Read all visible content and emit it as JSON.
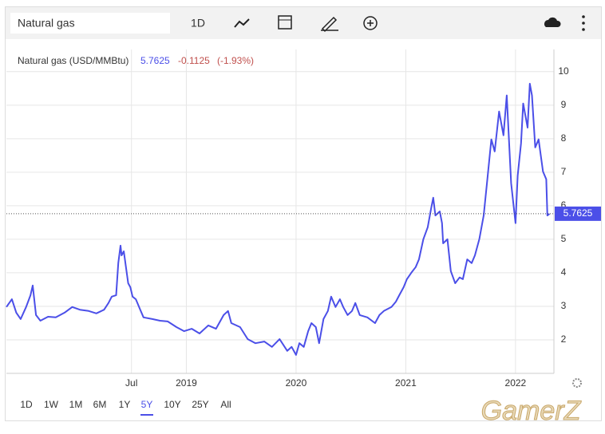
{
  "toolbar": {
    "search": "Natural gas",
    "interval": "1D"
  },
  "chart_data": {
    "type": "line",
    "title": "Natural gas (USD/MMBtu)",
    "last_price": 5.7625,
    "change": -0.1125,
    "change_pct": "(-1.93%)",
    "color": "#4b4fe8",
    "x": [
      2017.36,
      2017.41,
      2017.45,
      2017.49,
      2017.54,
      2017.58,
      2017.6,
      2017.63,
      2017.67,
      2017.74,
      2017.81,
      2017.89,
      2017.96,
      2018.03,
      2018.11,
      2018.18,
      2018.25,
      2018.29,
      2018.32,
      2018.36,
      2018.38,
      2018.4,
      2018.41,
      2018.43,
      2018.45,
      2018.47,
      2018.49,
      2018.51,
      2018.54,
      2018.58,
      2018.61,
      2018.69,
      2018.76,
      2018.83,
      2018.91,
      2018.98,
      2019.05,
      2019.12,
      2019.2,
      2019.27,
      2019.34,
      2019.38,
      2019.41,
      2019.49,
      2019.56,
      2019.63,
      2019.71,
      2019.78,
      2019.85,
      2019.92,
      2019.96,
      2020.0,
      2020.03,
      2020.07,
      2020.11,
      2020.14,
      2020.18,
      2020.21,
      2020.25,
      2020.29,
      2020.32,
      2020.36,
      2020.4,
      2020.43,
      2020.47,
      2020.51,
      2020.54,
      2020.58,
      2020.65,
      2020.72,
      2020.76,
      2020.8,
      2020.87,
      2020.91,
      2020.94,
      2020.98,
      2021.01,
      2021.05,
      2021.09,
      2021.12,
      2021.16,
      2021.2,
      2021.23,
      2021.25,
      2021.27,
      2021.31,
      2021.33,
      2021.34,
      2021.38,
      2021.41,
      2021.45,
      2021.49,
      2021.52,
      2021.56,
      2021.6,
      2021.63,
      2021.67,
      2021.71,
      2021.74,
      2021.78,
      2021.81,
      2021.85,
      2021.89,
      2021.92,
      2021.96,
      2022.0,
      2022.02,
      2022.05,
      2022.07,
      2022.11,
      2022.13,
      2022.15,
      2022.18,
      2022.21,
      2022.25,
      2022.28,
      2022.29,
      2022.31
    ],
    "values": [
      2.98,
      3.21,
      2.81,
      2.62,
      2.98,
      3.33,
      3.62,
      2.74,
      2.57,
      2.69,
      2.67,
      2.81,
      2.98,
      2.9,
      2.86,
      2.79,
      2.9,
      3.1,
      3.29,
      3.33,
      4.29,
      4.81,
      4.52,
      4.64,
      4.17,
      3.69,
      3.57,
      3.29,
      3.21,
      2.9,
      2.67,
      2.62,
      2.57,
      2.55,
      2.38,
      2.26,
      2.33,
      2.19,
      2.43,
      2.33,
      2.74,
      2.86,
      2.5,
      2.38,
      2.02,
      1.9,
      1.95,
      1.79,
      2.02,
      1.67,
      1.79,
      1.55,
      1.9,
      1.79,
      2.26,
      2.5,
      2.38,
      1.9,
      2.62,
      2.86,
      3.29,
      2.98,
      3.21,
      2.98,
      2.74,
      2.86,
      3.1,
      2.74,
      2.67,
      2.5,
      2.74,
      2.86,
      2.98,
      3.14,
      3.33,
      3.57,
      3.81,
      4.0,
      4.17,
      4.4,
      5.0,
      5.36,
      5.9,
      6.24,
      5.71,
      5.83,
      5.48,
      4.88,
      5.0,
      4.05,
      3.69,
      3.86,
      3.81,
      4.4,
      4.29,
      4.52,
      5.0,
      5.71,
      6.67,
      7.98,
      7.62,
      8.81,
      8.1,
      9.29,
      6.67,
      5.48,
      6.9,
      7.86,
      9.05,
      8.33,
      9.64,
      9.29,
      7.74,
      7.98,
      7.02,
      6.79,
      5.71,
      5.76
    ],
    "xlim": [
      2017.36,
      2022.35
    ],
    "ylim": [
      1,
      10.4
    ],
    "xticks": [
      {
        "value": 2018.5,
        "label": "Jul"
      },
      2019,
      2020,
      2021,
      2022
    ],
    "yticks": [
      2,
      3,
      4,
      5,
      6,
      7,
      8,
      9,
      10
    ],
    "grid": true
  },
  "ranges": [
    "1D",
    "1W",
    "1M",
    "6M",
    "1Y",
    "5Y",
    "10Y",
    "25Y",
    "All"
  ],
  "selected_range": 5,
  "watermark": "GamerZ"
}
